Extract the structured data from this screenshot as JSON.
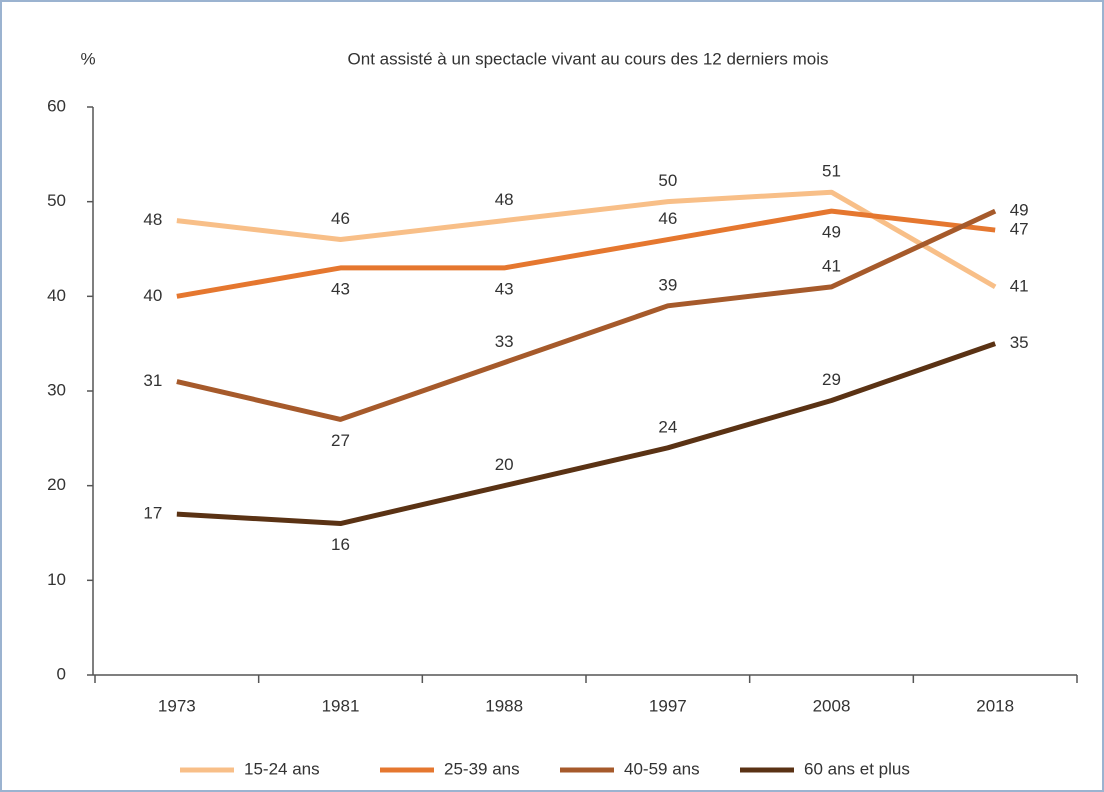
{
  "chart_data": {
    "type": "line",
    "title": "Ont assisté à un spectacle vivant au cours des 12 derniers mois",
    "y_label": "%",
    "categories": [
      "1973",
      "1981",
      "1988",
      "1997",
      "2008",
      "2018"
    ],
    "series": [
      {
        "name": "15-24 ans",
        "color": "#f8bf88",
        "values": [
          48,
          46,
          48,
          50,
          51,
          41
        ]
      },
      {
        "name": "25-39 ans",
        "color": "#e5772f",
        "values": [
          40,
          43,
          43,
          46,
          49,
          47
        ]
      },
      {
        "name": "40-59 ans",
        "color": "#a65a2b",
        "values": [
          31,
          27,
          33,
          39,
          41,
          49
        ]
      },
      {
        "name": "60 ans et plus",
        "color": "#5a3214",
        "values": [
          17,
          16,
          20,
          24,
          29,
          35
        ]
      }
    ],
    "ylim": [
      0,
      60
    ],
    "yticks": [
      0,
      10,
      20,
      30,
      40,
      50,
      60
    ],
    "grid": false
  }
}
